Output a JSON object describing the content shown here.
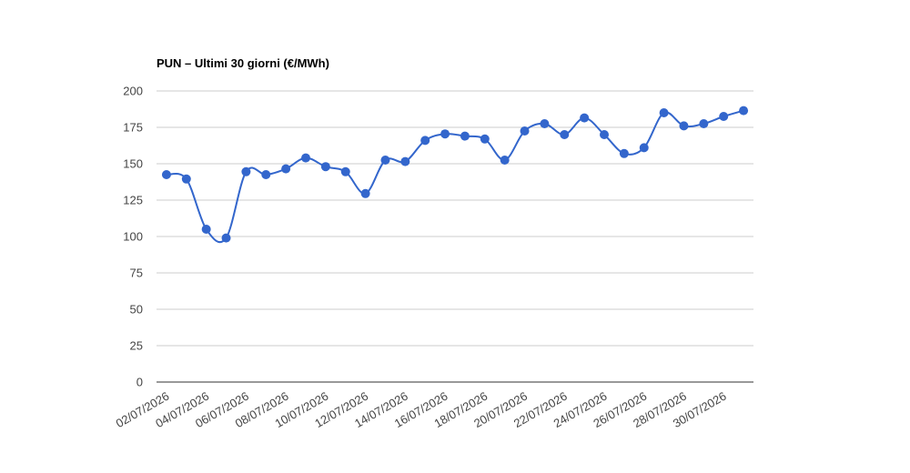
{
  "chart_data": {
    "type": "line",
    "title": "PUN – Ultimi 30 giorni (€/MWh)",
    "categories": [
      "02/07/2026",
      null,
      "04/07/2026",
      null,
      "06/07/2026",
      null,
      "08/07/2026",
      null,
      "10/07/2026",
      null,
      "12/07/2026",
      null,
      "14/07/2026",
      null,
      "16/07/2026",
      null,
      "18/07/2026",
      null,
      "20/07/2026",
      null,
      "22/07/2026",
      null,
      "24/07/2026",
      null,
      "26/07/2026",
      null,
      "28/07/2026",
      null,
      "30/07/2026",
      null
    ],
    "values": [
      142.5,
      139.5,
      105,
      99,
      144.5,
      142.5,
      146.5,
      154,
      148,
      144.5,
      129.5,
      152.5,
      151.5,
      166,
      170.5,
      169,
      167,
      152.5,
      172.5,
      177.5,
      170,
      181.5,
      170,
      157,
      161,
      185,
      176,
      177.5,
      182.5,
      186.5
    ],
    "color": "#3366cc",
    "ylim": [
      0,
      200
    ],
    "yticks": [
      0,
      25,
      50,
      75,
      100,
      125,
      150,
      175,
      200
    ],
    "grid": true,
    "curve": "smooth"
  }
}
